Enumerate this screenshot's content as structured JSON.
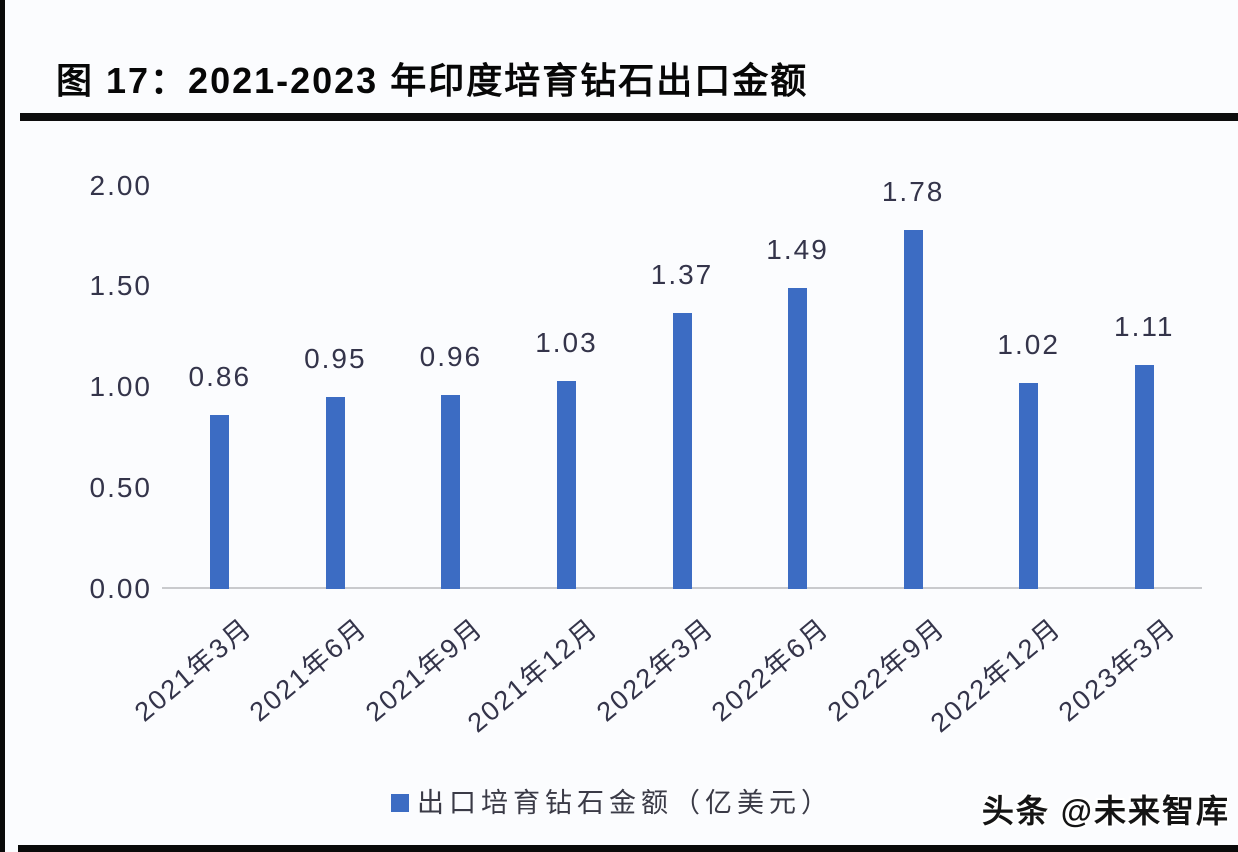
{
  "figure": {
    "title": "图 17：2021-2023 年印度培育钻石出口金额",
    "watermark": "头条 @未来智库"
  },
  "legend": {
    "label": "出口培育钻石金额（亿美元）"
  },
  "colors": {
    "bar": "#3c6cc3",
    "axis_text": "#34344a",
    "frame": "#0a0a0a",
    "baseline": "#c9cacd",
    "background": "#fbfcfe"
  },
  "chart_data": {
    "type": "bar",
    "title": "图 17：2021-2023 年印度培育钻石出口金额",
    "categories": [
      "2021年3月",
      "2021年6月",
      "2021年9月",
      "2021年12月",
      "2022年3月",
      "2022年6月",
      "2022年9月",
      "2022年12月",
      "2023年3月"
    ],
    "values": [
      0.86,
      0.95,
      0.96,
      1.03,
      1.37,
      1.49,
      1.78,
      1.02,
      1.11
    ],
    "value_labels": [
      "0.86",
      "0.95",
      "0.96",
      "1.03",
      "1.37",
      "1.49",
      "1.78",
      "1.02",
      "1.11"
    ],
    "series_name": "出口培育钻石金额（亿美元）",
    "xlabel": "",
    "ylabel": "",
    "ylim": [
      0,
      2.0
    ],
    "yticks": [
      0.0,
      0.5,
      1.0,
      1.5,
      2.0
    ],
    "ytick_labels": [
      "0.00",
      "0.50",
      "1.00",
      "1.50",
      "2.00"
    ],
    "grid": false,
    "legend_position": "bottom",
    "bar_color": "#3c6cc3"
  }
}
